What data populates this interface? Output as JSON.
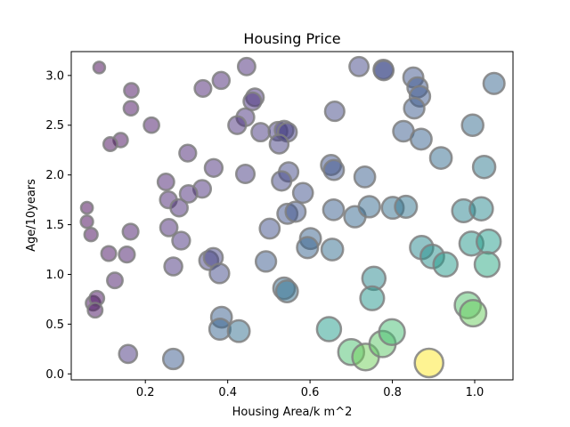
{
  "chart_data": {
    "type": "scatter",
    "title": "Housing Price",
    "xlabel": "Housing Area/k m^2",
    "ylabel": "Age/10years",
    "xlim": [
      0.02,
      1.093
    ],
    "ylim": [
      -0.06,
      3.24
    ],
    "x_ticks": [
      0.2,
      0.4,
      0.6,
      0.8,
      1.0
    ],
    "x_tick_labels": [
      "0.2",
      "0.4",
      "0.6",
      "0.8",
      "1.0"
    ],
    "y_ticks": [
      0.0,
      0.5,
      1.0,
      1.5,
      2.0,
      2.5,
      3.0
    ],
    "y_tick_labels": [
      "0.0",
      "0.5",
      "1.0",
      "1.5",
      "2.0",
      "2.5",
      "3.0"
    ],
    "grid": false,
    "marker_alpha": 0.5,
    "marker_edge_color": "#808080",
    "size_encodes": "x / (y + 1)",
    "color_encodes": "x / (y + 1)",
    "colormap": "viridis",
    "points": [
      {
        "x": 0.088,
        "y": 3.08
      },
      {
        "x": 0.166,
        "y": 2.85
      },
      {
        "x": 0.165,
        "y": 2.67
      },
      {
        "x": 0.215,
        "y": 2.5
      },
      {
        "x": 0.14,
        "y": 2.35
      },
      {
        "x": 0.115,
        "y": 2.31
      },
      {
        "x": 0.446,
        "y": 3.09
      },
      {
        "x": 0.34,
        "y": 2.87
      },
      {
        "x": 0.384,
        "y": 2.95
      },
      {
        "x": 0.466,
        "y": 2.78
      },
      {
        "x": 0.46,
        "y": 2.74
      },
      {
        "x": 0.443,
        "y": 2.58
      },
      {
        "x": 0.423,
        "y": 2.5
      },
      {
        "x": 0.48,
        "y": 2.43
      },
      {
        "x": 0.522,
        "y": 2.44
      },
      {
        "x": 0.537,
        "y": 2.45
      },
      {
        "x": 0.545,
        "y": 2.43
      },
      {
        "x": 0.525,
        "y": 2.31
      },
      {
        "x": 0.303,
        "y": 2.22
      },
      {
        "x": 0.366,
        "y": 2.07
      },
      {
        "x": 0.25,
        "y": 1.93
      },
      {
        "x": 0.443,
        "y": 2.01
      },
      {
        "x": 0.548,
        "y": 2.03
      },
      {
        "x": 0.531,
        "y": 1.94
      },
      {
        "x": 0.338,
        "y": 1.86
      },
      {
        "x": 0.305,
        "y": 1.81
      },
      {
        "x": 0.256,
        "y": 1.75
      },
      {
        "x": 0.282,
        "y": 1.67
      },
      {
        "x": 0.058,
        "y": 1.67
      },
      {
        "x": 0.058,
        "y": 1.53
      },
      {
        "x": 0.068,
        "y": 1.4
      },
      {
        "x": 0.164,
        "y": 1.43
      },
      {
        "x": 0.257,
        "y": 1.47
      },
      {
        "x": 0.287,
        "y": 1.34
      },
      {
        "x": 0.111,
        "y": 1.21
      },
      {
        "x": 0.155,
        "y": 1.2
      },
      {
        "x": 0.268,
        "y": 1.08
      },
      {
        "x": 0.126,
        "y": 0.94
      },
      {
        "x": 0.354,
        "y": 1.14
      },
      {
        "x": 0.365,
        "y": 1.17
      },
      {
        "x": 0.38,
        "y": 1.01
      },
      {
        "x": 0.073,
        "y": 0.71
      },
      {
        "x": 0.082,
        "y": 0.76
      },
      {
        "x": 0.078,
        "y": 0.64
      },
      {
        "x": 0.385,
        "y": 0.57
      },
      {
        "x": 0.381,
        "y": 0.45
      },
      {
        "x": 0.427,
        "y": 0.43
      },
      {
        "x": 0.158,
        "y": 0.2
      },
      {
        "x": 0.268,
        "y": 0.15
      },
      {
        "x": 0.778,
        "y": 3.06
      },
      {
        "x": 0.719,
        "y": 3.09
      },
      {
        "x": 0.779,
        "y": 3.05
      },
      {
        "x": 0.851,
        "y": 2.98
      },
      {
        "x": 0.861,
        "y": 2.88
      },
      {
        "x": 0.867,
        "y": 2.79
      },
      {
        "x": 0.853,
        "y": 2.67
      },
      {
        "x": 0.66,
        "y": 2.64
      },
      {
        "x": 0.827,
        "y": 2.44
      },
      {
        "x": 0.87,
        "y": 2.36
      },
      {
        "x": 0.995,
        "y": 2.5
      },
      {
        "x": 1.047,
        "y": 2.92
      },
      {
        "x": 0.918,
        "y": 2.17
      },
      {
        "x": 0.651,
        "y": 2.1
      },
      {
        "x": 0.658,
        "y": 2.05
      },
      {
        "x": 0.733,
        "y": 1.98
      },
      {
        "x": 1.023,
        "y": 2.08
      },
      {
        "x": 0.583,
        "y": 1.82
      },
      {
        "x": 0.545,
        "y": 1.61
      },
      {
        "x": 0.565,
        "y": 1.63
      },
      {
        "x": 0.657,
        "y": 1.65
      },
      {
        "x": 0.709,
        "y": 1.58
      },
      {
        "x": 0.744,
        "y": 1.68
      },
      {
        "x": 0.801,
        "y": 1.67
      },
      {
        "x": 0.833,
        "y": 1.68
      },
      {
        "x": 0.973,
        "y": 1.64
      },
      {
        "x": 1.016,
        "y": 1.66
      },
      {
        "x": 0.502,
        "y": 1.46
      },
      {
        "x": 0.601,
        "y": 1.36
      },
      {
        "x": 0.594,
        "y": 1.27
      },
      {
        "x": 0.654,
        "y": 1.25
      },
      {
        "x": 0.871,
        "y": 1.27
      },
      {
        "x": 0.897,
        "y": 1.18
      },
      {
        "x": 0.929,
        "y": 1.1
      },
      {
        "x": 0.992,
        "y": 1.31
      },
      {
        "x": 1.034,
        "y": 1.33
      },
      {
        "x": 1.03,
        "y": 1.1
      },
      {
        "x": 0.493,
        "y": 1.13
      },
      {
        "x": 0.537,
        "y": 0.86
      },
      {
        "x": 0.544,
        "y": 0.83
      },
      {
        "x": 0.755,
        "y": 0.96
      },
      {
        "x": 0.751,
        "y": 0.76
      },
      {
        "x": 0.983,
        "y": 0.69
      },
      {
        "x": 0.996,
        "y": 0.61
      },
      {
        "x": 0.646,
        "y": 0.45
      },
      {
        "x": 0.7,
        "y": 0.22
      },
      {
        "x": 0.735,
        "y": 0.17
      },
      {
        "x": 0.776,
        "y": 0.3
      },
      {
        "x": 0.799,
        "y": 0.42
      },
      {
        "x": 0.889,
        "y": 0.11
      }
    ]
  }
}
